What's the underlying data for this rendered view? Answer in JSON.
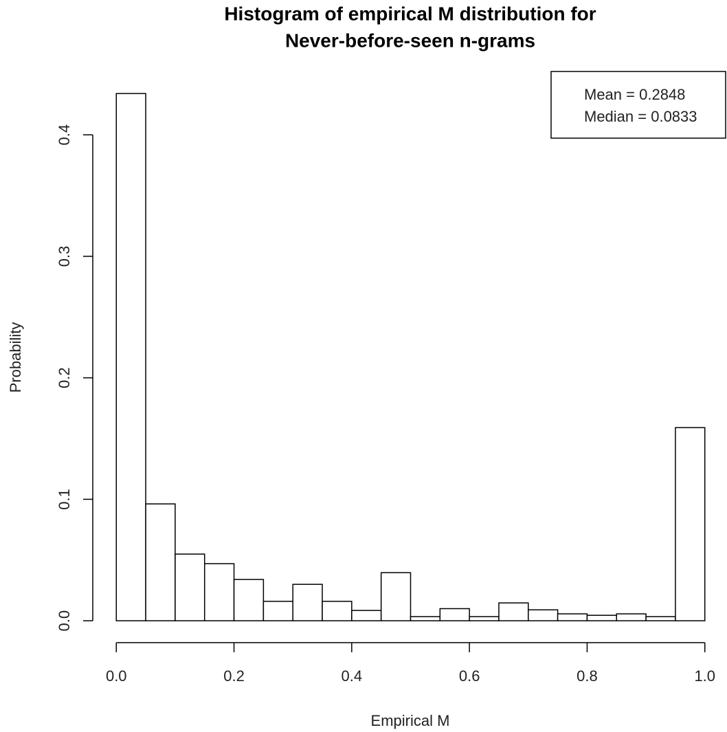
{
  "chart_data": {
    "type": "histogram",
    "title": [
      "Histogram of empirical M distribution for",
      "Never-before-seen n-grams"
    ],
    "x_label": "Empirical M",
    "y_label": "Probability",
    "bins": [
      0,
      0.05,
      0.1,
      0.15,
      0.2,
      0.25,
      0.3,
      0.35,
      0.4,
      0.45,
      0.5,
      0.55,
      0.6,
      0.65,
      0.7,
      0.75,
      0.8,
      0.85,
      0.9,
      0.95,
      1
    ],
    "counts": [
      0.434,
      0.0962,
      0.0549,
      0.047,
      0.034,
      0.016,
      0.03,
      0.016,
      0.0085,
      0.0396,
      0.0034,
      0.01,
      0.0034,
      0.0147,
      0.009,
      0.0057,
      0.0045,
      0.0057,
      0.0034,
      0.159
    ],
    "color": "#ffffff",
    "edge_color": "#000000",
    "xlim": [
      -0.04,
      1.04
    ],
    "ylim": [
      -0.018,
      0.451
    ],
    "xticks": [
      {
        "value": 0,
        "label": "0.0"
      },
      0.2,
      0.4,
      0.6,
      0.8,
      {
        "value": 1,
        "label": "1.0"
      }
    ],
    "yticks": [
      {
        "value": 0,
        "label": "0.0"
      },
      0.1,
      0.2,
      0.3,
      0.4
    ],
    "legend": [
      "Mean = 0.2848",
      "Median = 0.0833"
    ],
    "legend_position": "top-right"
  }
}
